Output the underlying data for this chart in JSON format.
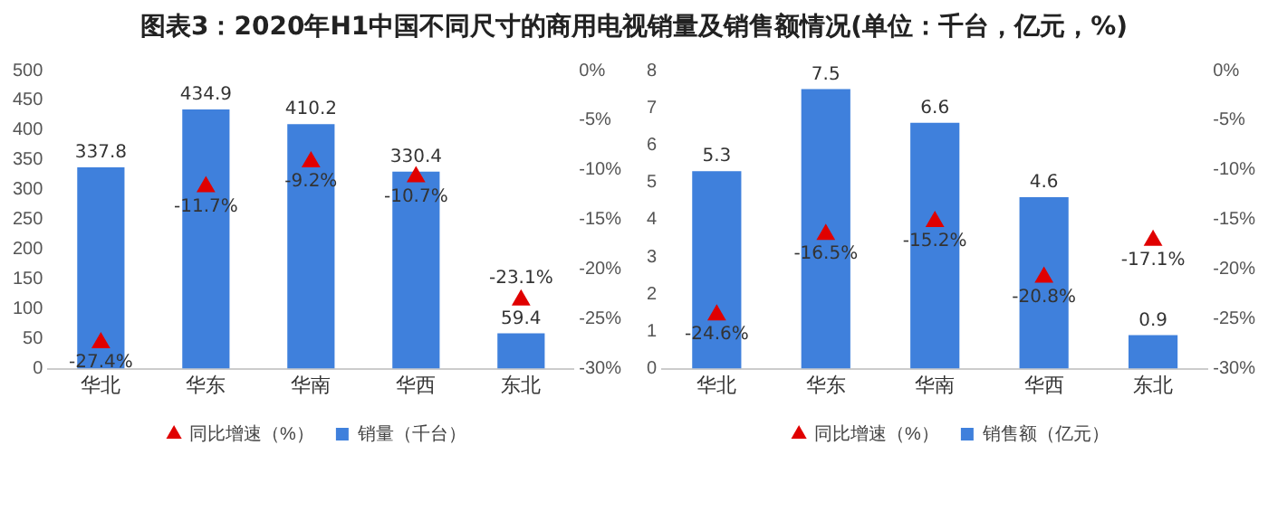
{
  "chart_data": [
    {
      "type": "bar",
      "title": "图表3：2020年H1中国不同尺寸的商用电视销量及销售额情况(单位：千台，亿元，%)",
      "categories": [
        "华北",
        "华东",
        "华南",
        "华西",
        "东北"
      ],
      "series": [
        {
          "name": "销量（千台）",
          "color": "#3f80dc",
          "values": [
            337.8,
            434.9,
            410.2,
            330.4,
            59.4
          ],
          "value_labels": [
            "337.8",
            "434.9",
            "410.2",
            "330.4",
            "59.4"
          ]
        },
        {
          "name": "同比增速（%）",
          "type": "scatter",
          "axis": "y2",
          "marker": "triangle",
          "color": "#e00000",
          "values": [
            -27.4,
            -11.7,
            -9.2,
            -10.7,
            -23.1
          ],
          "value_labels": [
            "-27.4%",
            "-11.7%",
            "-9.2%",
            "-10.7%",
            "-23.1%"
          ]
        }
      ],
      "ylim": [
        0,
        500
      ],
      "yticks": [
        0,
        50,
        100,
        150,
        200,
        250,
        300,
        350,
        400,
        450,
        500
      ],
      "y2lim": [
        -30,
        0
      ],
      "y2ticks": [
        {
          "value": 0,
          "label": "0%"
        },
        {
          "value": -5,
          "label": "-5%"
        },
        {
          "value": -10,
          "label": "-10%"
        },
        {
          "value": -15,
          "label": "-15%"
        },
        {
          "value": -20,
          "label": "-20%"
        },
        {
          "value": -25,
          "label": "-25%"
        },
        {
          "value": -30,
          "label": "-30%"
        }
      ],
      "legend": "bottom"
    },
    {
      "type": "bar",
      "categories": [
        "华北",
        "华东",
        "华南",
        "华西",
        "东北"
      ],
      "series": [
        {
          "name": "销售额（亿元）",
          "color": "#3f80dc",
          "values": [
            5.3,
            7.5,
            6.6,
            4.6,
            0.9
          ],
          "value_labels": [
            "5.3",
            "7.5",
            "6.6",
            "4.6",
            "0.9"
          ]
        },
        {
          "name": "同比增速（%）",
          "type": "scatter",
          "axis": "y2",
          "marker": "triangle",
          "color": "#e00000",
          "values": [
            -24.6,
            -16.5,
            -15.2,
            -20.8,
            -17.1
          ],
          "value_labels": [
            "-24.6%",
            "-16.5%",
            "-15.2%",
            "-20.8%",
            "-17.1%"
          ]
        }
      ],
      "ylim": [
        0,
        8
      ],
      "yticks": [
        0,
        1,
        2,
        3,
        4,
        5,
        6,
        7,
        8
      ],
      "y2lim": [
        -30,
        0
      ],
      "y2ticks": [
        {
          "value": 0,
          "label": "0%"
        },
        {
          "value": -5,
          "label": "-5%"
        },
        {
          "value": -10,
          "label": "-10%"
        },
        {
          "value": -15,
          "label": "-15%"
        },
        {
          "value": -20,
          "label": "-20%"
        },
        {
          "value": -25,
          "label": "-25%"
        },
        {
          "value": -30,
          "label": "-30%"
        }
      ],
      "legend": "bottom"
    }
  ]
}
